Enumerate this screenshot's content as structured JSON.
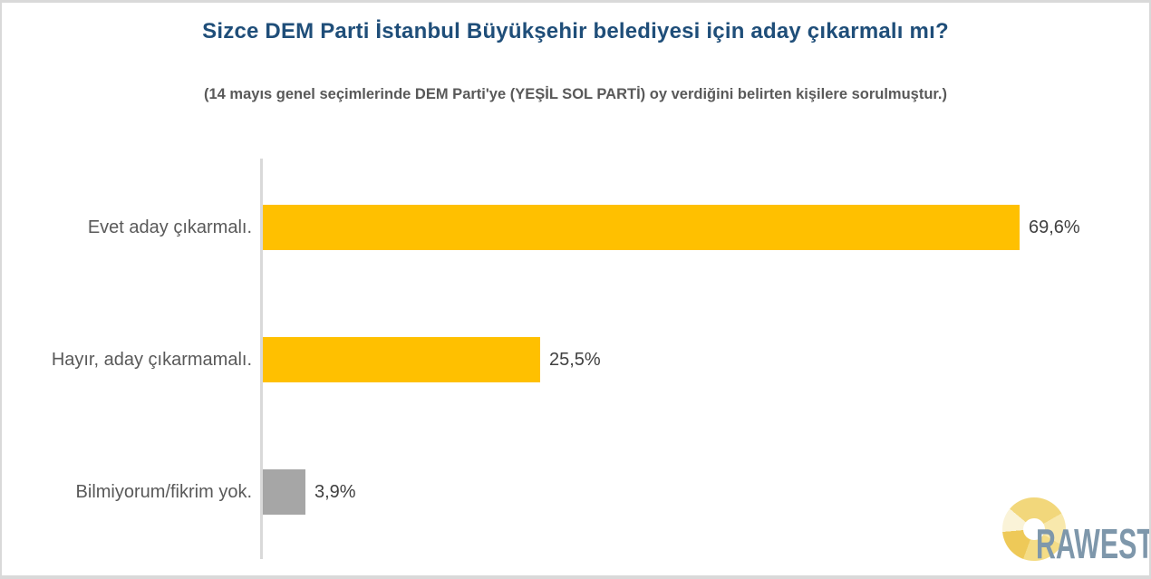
{
  "page": {
    "background": "#FFFFFF",
    "frame_border_color": "#D9D9D9"
  },
  "header": {
    "title": "Sizce DEM Parti İstanbul Büyükşehir belediyesi için aday çıkarmalı mı?",
    "title_color": "#1F4E79",
    "subtitle": "(14 mayıs genel seçimlerinde DEM Parti'ye (YEŞİL SOL PARTİ) oy verdiğini belirten kişilere sorulmuştur.)",
    "subtitle_color": "#595959"
  },
  "chart_data": {
    "type": "bar",
    "orientation": "horizontal",
    "title": "Sizce DEM Parti İstanbul Büyükşehir belediyesi için aday çıkarmalı mı?",
    "subtitle": "(14 mayıs genel seçimlerinde DEM Parti'ye (YEŞİL SOL PARTİ) oy verdiğini belirten kişilere sorulmuştur.)",
    "categories": [
      "Evet aday çıkarmalı.",
      "Hayır, aday çıkarmamalı.",
      "Bilmiyorum/fikrim yok."
    ],
    "values": [
      69.6,
      25.5,
      3.9
    ],
    "value_labels": [
      "69,6%",
      "25,5%",
      "3,9%"
    ],
    "bar_colors": [
      "#FFC000",
      "#FFC000",
      "#A6A6A6"
    ],
    "xlabel": "",
    "ylabel": "",
    "xlim": [
      0,
      100
    ],
    "grid": false,
    "legend": false,
    "axis_line_color": "#D9D9D9",
    "category_label_color": "#595959",
    "value_label_color": "#404040"
  },
  "branding": {
    "logo_text": "RAWEST",
    "logo_text_color": "#7E97AB",
    "logo_ring_colors": [
      "#F2D77B",
      "#F8E8AC",
      "#F4DC86",
      "#EEC958",
      "#FAF3D8"
    ]
  }
}
